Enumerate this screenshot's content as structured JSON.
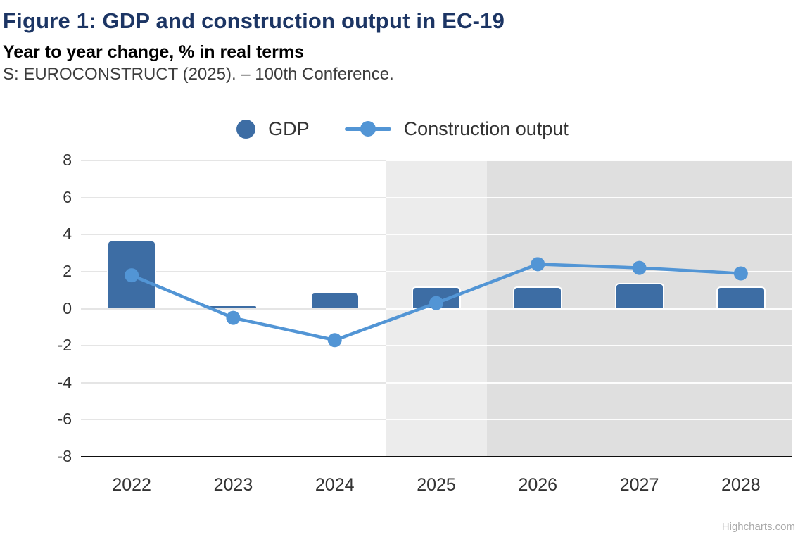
{
  "chart_data": {
    "type": "combo",
    "title": "Figure 1: GDP and construction output in EC-19",
    "subtitle": "Year to year change, % in real terms",
    "source": "S: EUROCONSTRUCT (2025). – 100th Conference.",
    "categories": [
      "2022",
      "2023",
      "2024",
      "2025",
      "2026",
      "2027",
      "2028"
    ],
    "series": [
      {
        "name": "GDP",
        "type": "bar",
        "color": "#3d6da4",
        "values": [
          3.7,
          0.2,
          0.9,
          1.2,
          1.2,
          1.4,
          1.2
        ]
      },
      {
        "name": "Construction output",
        "type": "line",
        "color": "#5295d5",
        "values": [
          1.8,
          -0.5,
          -1.7,
          0.3,
          2.4,
          2.2,
          1.9
        ]
      }
    ],
    "xlabel": "",
    "ylabel": "",
    "ylim": [
      -8,
      8
    ],
    "yticks": [
      8,
      6,
      4,
      2,
      0,
      -2,
      -4,
      -6,
      -8
    ],
    "grid": true,
    "legend_position": "top",
    "plot_bands": [
      {
        "from": "2025",
        "to": "2025",
        "color": "#ececec",
        "meaning": "shaded band over 2025"
      },
      {
        "from": "2026",
        "to": "2028",
        "color": "#dfdfdf",
        "meaning": "shaded band over 2026-2028"
      }
    ],
    "credits": "Highcharts.com"
  },
  "colors": {
    "title": "#1c3564",
    "axis_text": "#333333",
    "gridline": "#e5e5e5",
    "axis_line": "#0f0f0f",
    "credits_text": "#a9a9a9"
  }
}
